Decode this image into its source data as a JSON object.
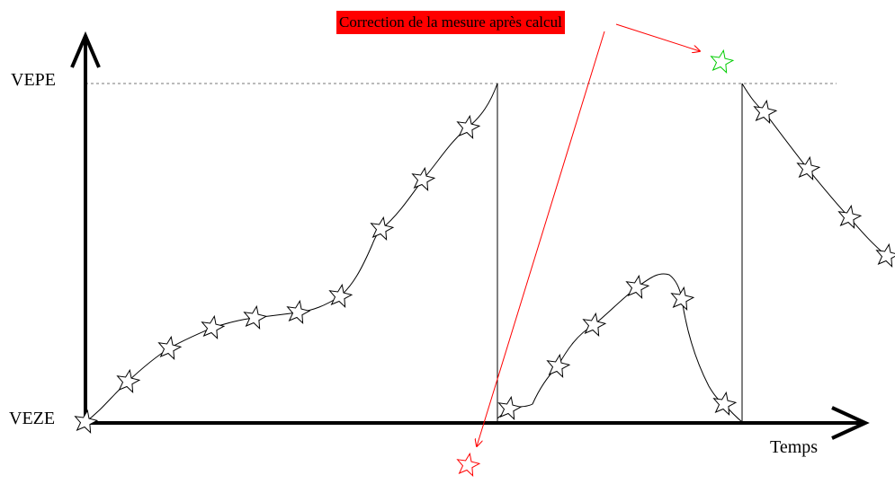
{
  "labels": {
    "y_top": "VEPE",
    "y_bottom": "VEZE",
    "x_axis": "Temps",
    "annotation": "Correction de la mesure après calcul"
  },
  "colors": {
    "curve": "#000000",
    "reference_line": "#777777",
    "annotation_background": "#ff0000",
    "annotation_arrow": "#ff0000",
    "corrected_star_low": "#ff0000",
    "corrected_star_high": "#00cc00"
  },
  "icons": {
    "measure_point": "star-outline-icon"
  }
}
